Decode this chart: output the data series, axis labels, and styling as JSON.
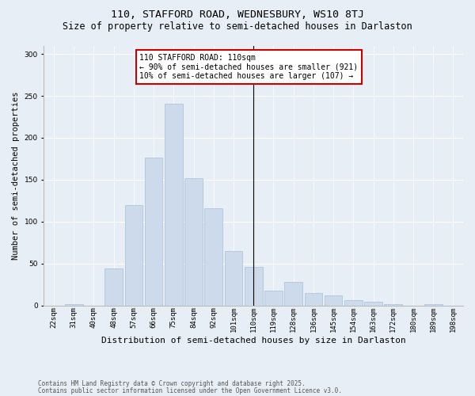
{
  "title1": "110, STAFFORD ROAD, WEDNESBURY, WS10 8TJ",
  "title2": "Size of property relative to semi-detached houses in Darlaston",
  "xlabel": "Distribution of semi-detached houses by size in Darlaston",
  "ylabel": "Number of semi-detached properties",
  "categories": [
    "22sqm",
    "31sqm",
    "40sqm",
    "48sqm",
    "57sqm",
    "66sqm",
    "75sqm",
    "84sqm",
    "92sqm",
    "101sqm",
    "110sqm",
    "119sqm",
    "128sqm",
    "136sqm",
    "145sqm",
    "154sqm",
    "163sqm",
    "172sqm",
    "180sqm",
    "189sqm",
    "198sqm"
  ],
  "values": [
    0,
    2,
    0,
    44,
    120,
    176,
    241,
    152,
    116,
    65,
    46,
    18,
    28,
    15,
    12,
    6,
    5,
    2,
    0,
    2,
    0
  ],
  "bar_color": "#ccdaeb",
  "bar_edge_color": "#a8c0d8",
  "vline_x_index": 10,
  "vline_color": "#000000",
  "annotation_text": "110 STAFFORD ROAD: 110sqm\n← 90% of semi-detached houses are smaller (921)\n10% of semi-detached houses are larger (107) →",
  "annotation_box_color": "#ffffff",
  "annotation_box_edge": "#cc0000",
  "footnote1": "Contains HM Land Registry data © Crown copyright and database right 2025.",
  "footnote2": "Contains public sector information licensed under the Open Government Licence v3.0.",
  "ylim": [
    0,
    310
  ],
  "yticks": [
    0,
    50,
    100,
    150,
    200,
    250,
    300
  ],
  "background_color": "#e8eef5",
  "title1_fontsize": 9.5,
  "title2_fontsize": 8.5,
  "tick_fontsize": 6.5,
  "ylabel_fontsize": 7.5,
  "xlabel_fontsize": 8,
  "annotation_fontsize": 7,
  "footnote_fontsize": 5.5
}
